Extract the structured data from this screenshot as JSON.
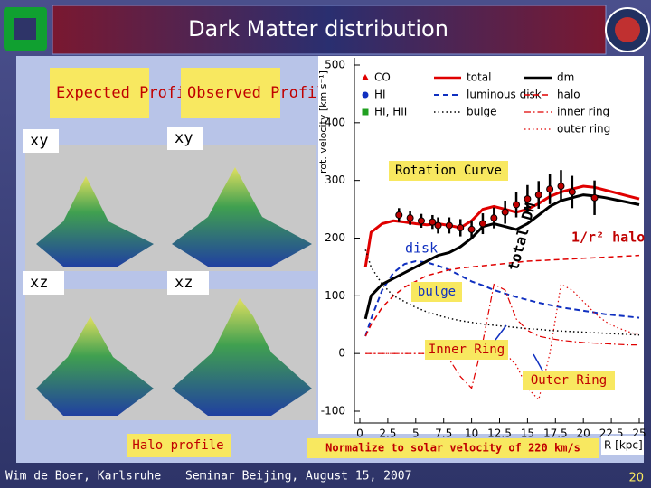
{
  "slide": {
    "title": "Dark Matter distribution",
    "labels": {
      "expected": "Expected Profile",
      "observed": "Observed Profile",
      "xy_left": "xy",
      "xy_right": "xy",
      "xz_left": "xz",
      "xz_right": "xz",
      "halo_profile": "Halo profile"
    },
    "footer": {
      "author": "Wim de Boer, Karlsruhe",
      "event": "Seminar Beijing, August 15, 2007",
      "page": "20"
    }
  },
  "chart_data": {
    "type": "line",
    "ylabel": "rot. velocity [km s⁻¹]",
    "xlabel": "R [kpc]",
    "xlim": [
      0,
      25
    ],
    "ylim": [
      -100,
      500
    ],
    "xticks": [
      0,
      2.5,
      5,
      7.5,
      10,
      12.5,
      15,
      17.5,
      20,
      22.5,
      25
    ],
    "yticks": [
      -100,
      0,
      100,
      200,
      300,
      400,
      500
    ],
    "x": [
      0.5,
      1,
      2,
      3,
      4,
      5,
      6,
      7,
      8,
      9,
      10,
      11,
      12,
      13,
      14,
      15,
      16,
      17,
      18,
      19,
      20,
      21,
      22,
      23,
      24,
      25
    ],
    "series": [
      {
        "name": "total",
        "color": "#e00000",
        "dash": "solid",
        "width": 3,
        "values": [
          150,
          210,
          225,
          230,
          228,
          225,
          223,
          225,
          222,
          218,
          230,
          250,
          255,
          250,
          245,
          250,
          260,
          272,
          280,
          285,
          290,
          288,
          283,
          278,
          273,
          268
        ]
      },
      {
        "name": "luminous disk",
        "color": "#1030c0",
        "dash": "dashed",
        "width": 2,
        "values": [
          30,
          60,
          110,
          140,
          155,
          160,
          158,
          152,
          145,
          135,
          125,
          118,
          110,
          104,
          98,
          93,
          88,
          84,
          80,
          77,
          74,
          71,
          68,
          66,
          64,
          62
        ]
      },
      {
        "name": "bulge",
        "color": "#000000",
        "dash": "dotted",
        "width": 1.5,
        "values": [
          180,
          150,
          120,
          100,
          90,
          80,
          72,
          66,
          61,
          57,
          54,
          51,
          49,
          47,
          45,
          43,
          42,
          40,
          39,
          38,
          37,
          36,
          35,
          34,
          33,
          32
        ]
      },
      {
        "name": "dm",
        "color": "#000000",
        "dash": "solid",
        "width": 3,
        "values": [
          60,
          100,
          120,
          130,
          140,
          150,
          160,
          170,
          175,
          185,
          200,
          220,
          225,
          220,
          215,
          225,
          240,
          255,
          265,
          270,
          275,
          273,
          270,
          266,
          262,
          258
        ]
      },
      {
        "name": "halo",
        "color": "#e00000",
        "dash": "dashed",
        "width": 1.5,
        "values": [
          30,
          50,
          80,
          100,
          115,
          125,
          135,
          140,
          145,
          148,
          150,
          152,
          154,
          156,
          158,
          160,
          161,
          162,
          163,
          164,
          165,
          166,
          167,
          168,
          169,
          170
        ]
      },
      {
        "name": "inner ring",
        "color": "#e00000",
        "dash": "dashdot",
        "width": 1.2,
        "values": [
          0,
          0,
          0,
          0,
          0,
          0,
          0,
          0,
          -10,
          -40,
          -60,
          20,
          120,
          110,
          60,
          40,
          30,
          26,
          23,
          21,
          19,
          18,
          17,
          16,
          15,
          15
        ]
      },
      {
        "name": "outer ring",
        "color": "#e00000",
        "dash": "dotted",
        "width": 1.2,
        "values": [
          0,
          0,
          0,
          0,
          0,
          0,
          0,
          0,
          0,
          0,
          0,
          0,
          0,
          0,
          -20,
          -60,
          -80,
          0,
          120,
          110,
          90,
          70,
          55,
          45,
          38,
          32
        ]
      }
    ],
    "markers": [
      {
        "name": "CO",
        "color": "#e00000",
        "shape": "triangle"
      },
      {
        "name": "HI",
        "color": "#1030c0",
        "shape": "circle"
      },
      {
        "name": "HI, HII",
        "color": "#20a020",
        "shape": "square"
      }
    ],
    "points": {
      "x": [
        3.5,
        4.5,
        5.5,
        6.5,
        7,
        8,
        9,
        10,
        11,
        12,
        13,
        14,
        15,
        16,
        17,
        18,
        19,
        21
      ],
      "values": [
        240,
        235,
        230,
        228,
        222,
        222,
        218,
        215,
        225,
        235,
        245,
        258,
        268,
        275,
        285,
        290,
        280,
        270
      ],
      "errors": [
        12,
        12,
        12,
        12,
        14,
        14,
        15,
        16,
        18,
        18,
        20,
        22,
        24,
        24,
        26,
        28,
        28,
        30
      ]
    },
    "annotations": {
      "rotation_curve": "Rotation Curve",
      "total_dm": "total DM",
      "disk": "disk",
      "halo": "1/r² halo",
      "bulge": "bulge",
      "inner_ring": "Inner Ring",
      "outer_ring": "Outer Ring",
      "normalize": "Normalize to solar velocity of 220 km/s"
    }
  }
}
